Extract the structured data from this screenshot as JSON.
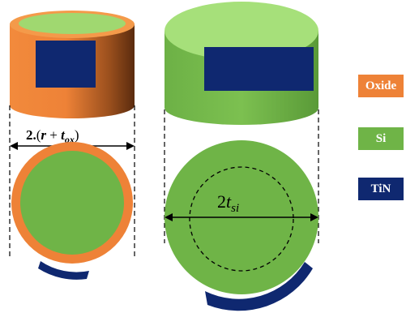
{
  "dimension_left": {
    "prefix": "2.",
    "open": "(",
    "r": "r",
    "plus": " + ",
    "t": "t",
    "sub": "ox",
    "close": ")"
  },
  "dimension_right": {
    "prefix": "2",
    "t": "t",
    "sub": "si"
  },
  "legend": [
    {
      "label": "Oxide",
      "color": "#ee8237"
    },
    {
      "label": "Si",
      "color": "#6fb447"
    },
    {
      "label": "TiN",
      "color": "#0f2870"
    }
  ],
  "colors": {
    "oxide": "#ee8237",
    "si": "#6fb447",
    "si_top": "#a6e07a",
    "tin": "#0f2870"
  }
}
